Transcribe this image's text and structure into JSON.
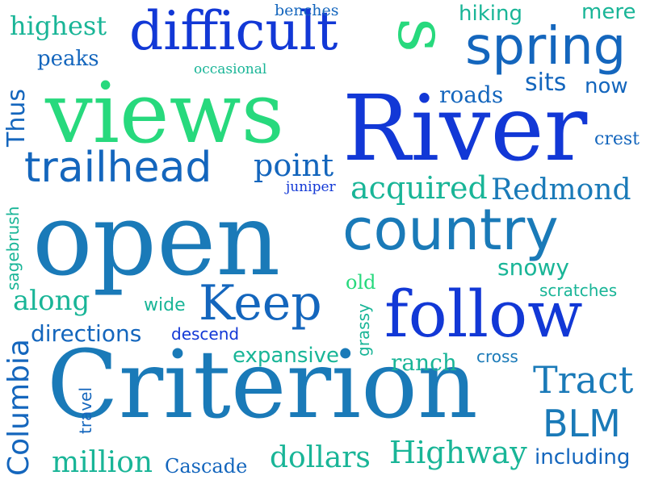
{
  "palette": {
    "background": "#ffffff",
    "blue": "#1238d6",
    "mid_blue": "#1466bd",
    "steel": "#1a7ab8",
    "teal": "#19b597",
    "mint": "#27d97d"
  },
  "words": [
    {
      "text": "open",
      "color": "#1a7ab8"
    },
    {
      "text": "Criterion",
      "color": "#1a7ab8"
    },
    {
      "text": "River",
      "color": "#1238d6"
    },
    {
      "text": "views",
      "color": "#27d97d"
    },
    {
      "text": "difficult",
      "color": "#1238d6"
    },
    {
      "text": "s",
      "color": "#27d97d"
    },
    {
      "text": "spring",
      "color": "#1466bd"
    },
    {
      "text": "country",
      "color": "#1a7ab8"
    },
    {
      "text": "follow",
      "color": "#1238d6"
    },
    {
      "text": "Keep",
      "color": "#1466bd"
    },
    {
      "text": "trailhead",
      "color": "#1466bd"
    },
    {
      "text": "point",
      "color": "#1466bd"
    },
    {
      "text": "acquired",
      "color": "#19b597"
    },
    {
      "text": "Redmond",
      "color": "#1a7ab8"
    },
    {
      "text": "Tract",
      "color": "#1a7ab8"
    },
    {
      "text": "BLM",
      "color": "#1a7ab8"
    },
    {
      "text": "Highway",
      "color": "#19b597"
    },
    {
      "text": "dollars",
      "color": "#19b597"
    },
    {
      "text": "million",
      "color": "#19b597"
    },
    {
      "text": "Cascade",
      "color": "#1466bd"
    },
    {
      "text": "including",
      "color": "#1466bd"
    },
    {
      "text": "Columbia",
      "color": "#1466bd"
    },
    {
      "text": "highest",
      "color": "#19b597"
    },
    {
      "text": "peaks",
      "color": "#1466bd"
    },
    {
      "text": "occasional",
      "color": "#19b597"
    },
    {
      "text": "benches",
      "color": "#1466bd"
    },
    {
      "text": "hiking",
      "color": "#19b597"
    },
    {
      "text": "mere",
      "color": "#19b597"
    },
    {
      "text": "Thus",
      "color": "#1466bd"
    },
    {
      "text": "roads",
      "color": "#1466bd"
    },
    {
      "text": "sits",
      "color": "#1466bd"
    },
    {
      "text": "now",
      "color": "#1466bd"
    },
    {
      "text": "crest",
      "color": "#1466bd"
    },
    {
      "text": "juniper",
      "color": "#1238d6"
    },
    {
      "text": "sagebrush",
      "color": "#19b597"
    },
    {
      "text": "snowy",
      "color": "#19b597"
    },
    {
      "text": "old",
      "color": "#27d97d"
    },
    {
      "text": "scratches",
      "color": "#19b597"
    },
    {
      "text": "along",
      "color": "#19b597"
    },
    {
      "text": "wide",
      "color": "#19b597"
    },
    {
      "text": "directions",
      "color": "#1466bd"
    },
    {
      "text": "descend",
      "color": "#1238d6"
    },
    {
      "text": "grassy",
      "color": "#19b597"
    },
    {
      "text": "expansive",
      "color": "#19b597"
    },
    {
      "text": "ranch",
      "color": "#19b597"
    },
    {
      "text": "cross",
      "color": "#1a7ab8"
    },
    {
      "text": "travel",
      "color": "#1466bd"
    }
  ]
}
